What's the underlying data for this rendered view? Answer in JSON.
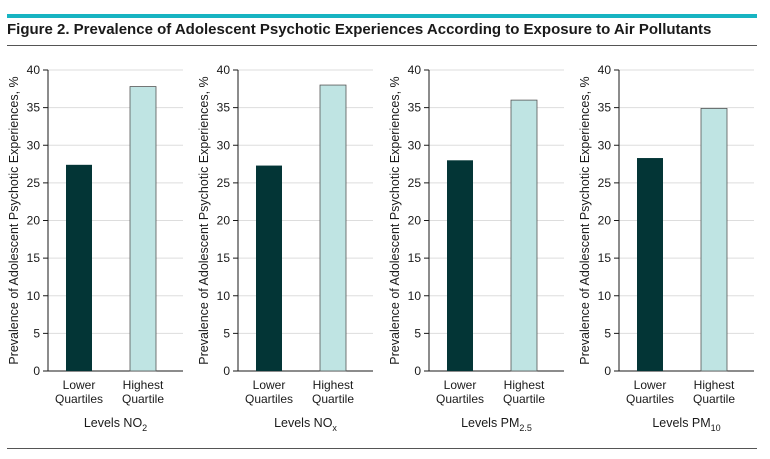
{
  "figure": {
    "title": "Figure 2. Prevalence of Adolescent Psychotic Experiences According to Exposure to Air Pollutants",
    "accent_color": "#17b4c2"
  },
  "colors": {
    "lower": "#033536",
    "highest": "#bfe4e3",
    "highest_stroke": "#555555",
    "grid": "#dddddd"
  },
  "chart_data": [
    {
      "type": "bar",
      "categories": [
        [
          "Lower",
          "Quartiles"
        ],
        [
          "Highest",
          "Quartile"
        ]
      ],
      "values": [
        27.4,
        37.8
      ],
      "title": "",
      "xlabel": "Levels NO",
      "xlabel_sub": "2",
      "ylabel": "Prevalence of Adolescent Psychotic Experiences, %",
      "ylim": [
        0,
        40
      ],
      "yticks": [
        0,
        5,
        10,
        15,
        20,
        25,
        30,
        35,
        40
      ],
      "grid": true
    },
    {
      "type": "bar",
      "categories": [
        [
          "Lower",
          "Quartiles"
        ],
        [
          "Highest",
          "Quartile"
        ]
      ],
      "values": [
        27.3,
        38.0
      ],
      "title": "",
      "xlabel": "Levels NO",
      "xlabel_sub": "x",
      "ylabel": "Prevalence of Adolescent Psychotic Experiences, %",
      "ylim": [
        0,
        40
      ],
      "yticks": [
        0,
        5,
        10,
        15,
        20,
        25,
        30,
        35,
        40
      ],
      "grid": true
    },
    {
      "type": "bar",
      "categories": [
        [
          "Lower",
          "Quartiles"
        ],
        [
          "Highest",
          "Quartile"
        ]
      ],
      "values": [
        28.0,
        36.0
      ],
      "title": "",
      "xlabel": "Levels PM",
      "xlabel_sub": "2.5",
      "ylabel": "Prevalence of Adolescent Psychotic Experiences, %",
      "ylim": [
        0,
        40
      ],
      "yticks": [
        0,
        5,
        10,
        15,
        20,
        25,
        30,
        35,
        40
      ],
      "grid": true
    },
    {
      "type": "bar",
      "categories": [
        [
          "Lower",
          "Quartiles"
        ],
        [
          "Highest",
          "Quartile"
        ]
      ],
      "values": [
        28.3,
        34.9
      ],
      "title": "",
      "xlabel": "Levels PM",
      "xlabel_sub": "10",
      "ylabel": "Prevalence of Adolescent Psychotic Experiences, %",
      "ylim": [
        0,
        40
      ],
      "yticks": [
        0,
        5,
        10,
        15,
        20,
        25,
        30,
        35,
        40
      ],
      "grid": true
    }
  ]
}
